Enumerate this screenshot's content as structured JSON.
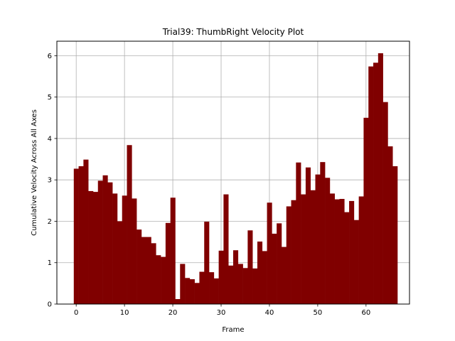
{
  "chart_data": {
    "type": "bar",
    "title": "Trial39: ThumbRight Velocity Plot",
    "xlabel": "Frame",
    "ylabel": "Cumulative Velocity Across All Axes",
    "xlim": [
      -4,
      69
    ],
    "ylim": [
      0,
      6.35
    ],
    "xticks": [
      0,
      10,
      20,
      30,
      40,
      50,
      60
    ],
    "yticks": [
      0,
      1,
      2,
      3,
      4,
      5,
      6
    ],
    "grid": true,
    "bar_color": "#800000",
    "x": [
      0,
      1,
      2,
      3,
      4,
      5,
      6,
      7,
      8,
      9,
      10,
      11,
      12,
      13,
      14,
      15,
      16,
      17,
      18,
      19,
      20,
      21,
      22,
      23,
      24,
      25,
      26,
      27,
      28,
      29,
      30,
      31,
      32,
      33,
      34,
      35,
      36,
      37,
      38,
      39,
      40,
      41,
      42,
      43,
      44,
      45,
      46,
      47,
      48,
      49,
      50,
      51,
      52,
      53,
      54,
      55,
      56,
      57,
      58,
      59,
      60,
      61,
      62,
      63,
      64,
      65,
      66
    ],
    "values": [
      3.27,
      3.33,
      3.49,
      2.73,
      2.71,
      2.98,
      3.11,
      2.94,
      2.67,
      2.0,
      2.62,
      3.84,
      2.55,
      1.8,
      1.62,
      1.62,
      1.47,
      1.18,
      1.14,
      1.96,
      2.57,
      0.12,
      0.97,
      0.63,
      0.6,
      0.51,
      0.78,
      1.99,
      0.77,
      0.62,
      1.29,
      2.65,
      0.93,
      1.3,
      0.97,
      0.87,
      1.78,
      0.86,
      1.51,
      1.28,
      2.45,
      1.7,
      1.95,
      1.38,
      2.36,
      2.51,
      3.42,
      2.65,
      3.3,
      2.75,
      3.13,
      3.43,
      3.05,
      2.67,
      2.53,
      2.54,
      2.22,
      2.49,
      2.03,
      2.6,
      4.5,
      5.74,
      5.83,
      6.06,
      4.88,
      3.81,
      3.33
    ]
  }
}
